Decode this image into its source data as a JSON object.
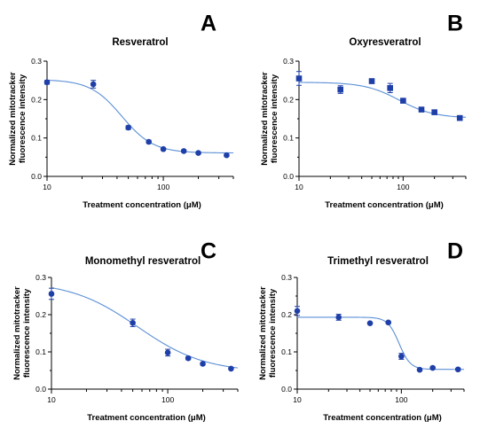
{
  "figure": {
    "background": "#ffffff",
    "series_color": "#1f3fa8",
    "curve_color": "#5b8fd6"
  },
  "chart_data": [
    {
      "panel": "A",
      "type": "scatter",
      "title": "Resveratrol",
      "xlabel": "Treatment concentration (μM)",
      "ylabel": "Normalized mitotracker\nfluorescence intensity",
      "xscale": "log",
      "xlim": [
        10,
        400
      ],
      "ylim": [
        0,
        0.3
      ],
      "xticks": [
        10,
        100
      ],
      "xtick_labels": [
        "10",
        "100"
      ],
      "yticks": [
        0,
        0.1,
        0.2,
        0.3
      ],
      "ytick_labels": [
        "0.0",
        "0.1",
        "0.2",
        "0.3"
      ],
      "marker": "circle",
      "points": [
        {
          "x": 10,
          "y": 0.245,
          "err": 0.005
        },
        {
          "x": 25,
          "y": 0.24,
          "err": 0.01
        },
        {
          "x": 50,
          "y": 0.127,
          "err": 0.005
        },
        {
          "x": 75,
          "y": 0.09,
          "err": 0.004
        },
        {
          "x": 100,
          "y": 0.071,
          "err": 0.003
        },
        {
          "x": 150,
          "y": 0.066,
          "err": 0.003
        },
        {
          "x": 200,
          "y": 0.061,
          "err": 0.003
        },
        {
          "x": 350,
          "y": 0.055,
          "err": 0.003
        }
      ],
      "fit": {
        "top": 0.252,
        "bottom": 0.061,
        "ec50": 44,
        "hill": 3.2
      }
    },
    {
      "panel": "B",
      "type": "scatter",
      "title": "Oxyresveratrol",
      "xlabel": "Treatment concentration (μM)",
      "ylabel": "Normalized mitotracker\nfluorescence intensity",
      "xscale": "log",
      "xlim": [
        10,
        400
      ],
      "ylim": [
        0,
        0.3
      ],
      "xticks": [
        10,
        100
      ],
      "xtick_labels": [
        "10",
        "100"
      ],
      "yticks": [
        0,
        0.1,
        0.2,
        0.3
      ],
      "ytick_labels": [
        "0.0",
        "0.1",
        "0.2",
        "0.3"
      ],
      "marker": "square",
      "points": [
        {
          "x": 10,
          "y": 0.255,
          "err": 0.018
        },
        {
          "x": 25,
          "y": 0.226,
          "err": 0.01
        },
        {
          "x": 50,
          "y": 0.248,
          "err": 0.006
        },
        {
          "x": 75,
          "y": 0.23,
          "err": 0.012
        },
        {
          "x": 100,
          "y": 0.197,
          "err": 0.006
        },
        {
          "x": 150,
          "y": 0.174,
          "err": 0.004
        },
        {
          "x": 200,
          "y": 0.167,
          "err": 0.003
        },
        {
          "x": 350,
          "y": 0.152,
          "err": 0.003
        }
      ],
      "fit": {
        "top": 0.245,
        "bottom": 0.152,
        "ec50": 92,
        "hill": 2.6
      }
    },
    {
      "panel": "C",
      "type": "scatter",
      "title": "Monomethyl resveratrol",
      "xlabel": "Treatment concentration (μM)",
      "ylabel": "Normalized mitotracker\nfluorescence intensity",
      "xscale": "log",
      "xlim": [
        10,
        400
      ],
      "ylim": [
        0,
        0.3
      ],
      "xticks": [
        10,
        100
      ],
      "xtick_labels": [
        "10",
        "100"
      ],
      "yticks": [
        0,
        0.1,
        0.2,
        0.3
      ],
      "ytick_labels": [
        "0.0",
        "0.1",
        "0.2",
        "0.3"
      ],
      "marker": "circle",
      "points": [
        {
          "x": 10,
          "y": 0.256,
          "err": 0.015
        },
        {
          "x": 50,
          "y": 0.178,
          "err": 0.01
        },
        {
          "x": 100,
          "y": 0.098,
          "err": 0.009
        },
        {
          "x": 150,
          "y": 0.083,
          "err": 0.004
        },
        {
          "x": 200,
          "y": 0.068,
          "err": 0.003
        },
        {
          "x": 350,
          "y": 0.055,
          "err": 0.003
        }
      ],
      "fit": {
        "top": 0.29,
        "bottom": 0.045,
        "ec50": 55,
        "hill": 1.5
      }
    },
    {
      "panel": "D",
      "type": "scatter",
      "title": "Trimethyl resveratrol",
      "xlabel": "Treatment concentration (μM)",
      "ylabel": "Normalized mitotracker\nfluorescence intensity",
      "xscale": "log",
      "xlim": [
        10,
        400
      ],
      "ylim": [
        0,
        0.3
      ],
      "xticks": [
        10,
        100
      ],
      "xtick_labels": [
        "10",
        "100"
      ],
      "yticks": [
        0,
        0.1,
        0.2,
        0.3
      ],
      "ytick_labels": [
        "0.0",
        "0.1",
        "0.2",
        "0.3"
      ],
      "marker": "circle",
      "points": [
        {
          "x": 10,
          "y": 0.21,
          "err": 0.012
        },
        {
          "x": 25,
          "y": 0.193,
          "err": 0.008
        },
        {
          "x": 50,
          "y": 0.177,
          "err": 0.003
        },
        {
          "x": 75,
          "y": 0.179,
          "err": 0.003
        },
        {
          "x": 100,
          "y": 0.088,
          "err": 0.008
        },
        {
          "x": 150,
          "y": 0.052,
          "err": 0.003
        },
        {
          "x": 200,
          "y": 0.057,
          "err": 0.003
        },
        {
          "x": 350,
          "y": 0.053,
          "err": 0.003
        }
      ],
      "fit": {
        "top": 0.193,
        "bottom": 0.053,
        "ec50": 95,
        "hill": 8
      }
    }
  ]
}
